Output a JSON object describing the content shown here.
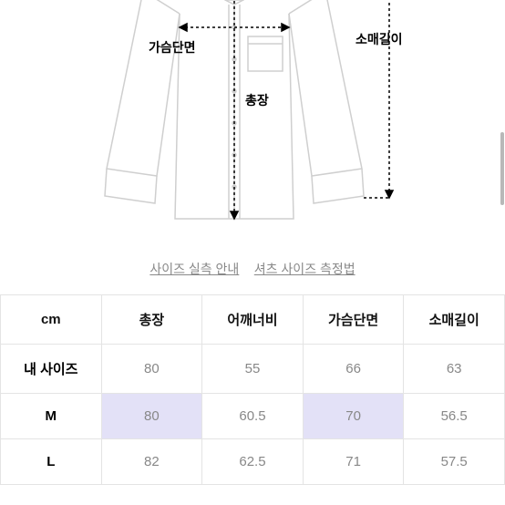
{
  "diagram": {
    "labels": {
      "chest": "가슴단면",
      "sleeve": "소매길이",
      "length": "총장"
    }
  },
  "links": {
    "size_guide": "사이즈 실측 안내",
    "measure_method": "셔츠 사이즈 측정법"
  },
  "table": {
    "headers": [
      "cm",
      "총장",
      "어깨너비",
      "가슴단면",
      "소매길이"
    ],
    "rows": [
      {
        "label": "내 사이즈",
        "values": [
          "80",
          "55",
          "66",
          "63"
        ],
        "highlights": [
          false,
          false,
          false,
          false
        ]
      },
      {
        "label": "M",
        "values": [
          "80",
          "60.5",
          "70",
          "56.5"
        ],
        "highlights": [
          true,
          false,
          true,
          false
        ]
      },
      {
        "label": "L",
        "values": [
          "82",
          "62.5",
          "71",
          "57.5"
        ],
        "highlights": [
          false,
          false,
          false,
          false
        ]
      }
    ]
  },
  "colors": {
    "highlight": "#e3e1f7",
    "border": "#e4e4e4",
    "link": "#888888"
  }
}
